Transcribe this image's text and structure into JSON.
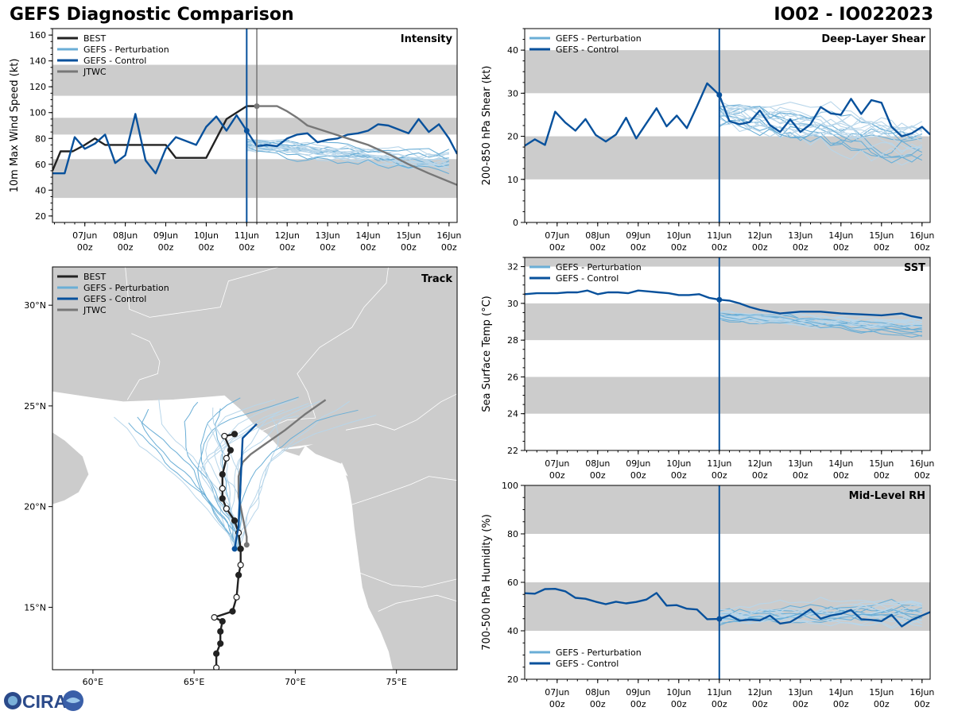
{
  "header": {
    "title": "GEFS Diagnostic Comparison",
    "storm_id": "IO02 - IO022023"
  },
  "logo_text": "CIRA",
  "colors": {
    "best": "#222222",
    "perturbation": "#6aaed6",
    "perturbation_light": "#b8d6ea",
    "control": "#08519c",
    "jtwc": "#777777",
    "band": "#cccccc",
    "land": "#cccccc",
    "border": "#ffffff"
  },
  "time_axis": {
    "tick_labels": [
      [
        "07Jun",
        "00z"
      ],
      [
        "08Jun",
        "00z"
      ],
      [
        "09Jun",
        "00z"
      ],
      [
        "10Jun",
        "00z"
      ],
      [
        "11Jun",
        "00z"
      ],
      [
        "12Jun",
        "00z"
      ],
      [
        "13Jun",
        "00z"
      ],
      [
        "14Jun",
        "00z"
      ],
      [
        "15Jun",
        "00z"
      ],
      [
        "16Jun",
        "00z"
      ]
    ],
    "xlim_days": [
      -4.8,
      5.2
    ],
    "analysis_day": 0
  },
  "chart_data": [
    {
      "id": "intensity",
      "type": "line",
      "title": "Intensity",
      "ylabel": "10m Max Wind Speed (kt)",
      "ylim": [
        15,
        165
      ],
      "yticks": [
        20,
        40,
        60,
        80,
        100,
        120,
        140,
        160
      ],
      "bands": [
        [
          34,
          64
        ],
        [
          83,
          96
        ],
        [
          113,
          137
        ]
      ],
      "legend": [
        "BEST",
        "GEFS - Perturbation",
        "GEFS - Control",
        "JTWC"
      ],
      "jtwc_start_day": 0.25,
      "series": [
        {
          "name": "BEST",
          "x": [
            -4.8,
            -4.6,
            -4.3,
            -4.0,
            -3.75,
            -3.5,
            -3.0,
            -2.5,
            -2.0,
            -1.75,
            -1.25,
            -1.0,
            -0.5,
            0,
            0.25
          ],
          "y": [
            55,
            70,
            70,
            75,
            80,
            75,
            75,
            75,
            75,
            65,
            65,
            65,
            95,
            105,
            105
          ]
        },
        {
          "name": "GEFS - Control",
          "x": [
            -4.8,
            -4.5,
            -4.25,
            -4.0,
            -3.75,
            -3.5,
            -3.25,
            -3.0,
            -2.75,
            -2.5,
            -2.25,
            -2.0,
            -1.75,
            -1.5,
            -1.25,
            -1.0,
            -0.75,
            -0.5,
            -0.25,
            0,
            0.25,
            0.5,
            0.75,
            1.0,
            1.25,
            1.5,
            1.75,
            2.0,
            2.25,
            2.5,
            2.75,
            3.0,
            3.25,
            3.5,
            3.75,
            4.0,
            4.25,
            4.5,
            4.75,
            5.0,
            5.2
          ],
          "y": [
            53,
            53,
            81,
            72,
            76,
            83,
            61,
            67,
            99,
            63,
            53,
            72,
            81,
            78,
            75,
            89,
            97,
            86,
            98,
            86,
            74,
            75,
            74,
            80,
            83,
            84,
            77,
            79,
            80,
            83,
            84,
            86,
            91,
            90,
            87,
            84,
            95,
            85,
            91,
            80,
            68
          ]
        },
        {
          "name": "JTWC",
          "x": [
            0.25,
            0.5,
            0.75,
            1.0,
            1.25,
            1.5,
            2.0,
            2.5,
            3.0,
            3.5,
            4.0,
            4.5,
            5.2
          ],
          "y": [
            105,
            105,
            105,
            101,
            96,
            90,
            85,
            80,
            75,
            68,
            60,
            53,
            44
          ]
        }
      ],
      "perturbation_spread": {
        "start_day": 0,
        "mean": 75,
        "spread": 10,
        "end_mean": 60,
        "members": 20
      }
    },
    {
      "id": "shear",
      "type": "line",
      "title": "Deep-Layer Shear",
      "ylabel": "200-850 hPa Shear (kt)",
      "ylim": [
        0,
        45
      ],
      "yticks": [
        0,
        10,
        20,
        30,
        40
      ],
      "bands": [
        [
          10,
          20
        ],
        [
          30,
          40
        ]
      ],
      "legend": [
        "GEFS - Perturbation",
        "GEFS - Control"
      ],
      "series": [
        {
          "name": "GEFS - Control",
          "x": [
            -4.8,
            -4.55,
            -4.3,
            -4.05,
            -3.8,
            -3.55,
            -3.3,
            -3.05,
            -2.8,
            -2.55,
            -2.3,
            -2.05,
            -1.8,
            -1.55,
            -1.3,
            -1.05,
            -0.8,
            -0.55,
            -0.3,
            0,
            0.25,
            0.5,
            0.75,
            1.0,
            1.25,
            1.5,
            1.75,
            2.0,
            2.25,
            2.5,
            2.75,
            3.0,
            3.25,
            3.5,
            3.75,
            4.0,
            4.25,
            4.5,
            4.75,
            5.0,
            5.2
          ],
          "y": [
            17.8,
            19.3,
            18.0,
            25.7,
            23.2,
            21.3,
            24.0,
            20.3,
            18.8,
            20.4,
            24.3,
            19.5,
            23.0,
            26.5,
            22.3,
            24.8,
            21.9,
            27.0,
            32.3,
            29.6,
            23.5,
            22.8,
            23.3,
            26.0,
            22.6,
            21.0,
            23.9,
            21.0,
            22.8,
            26.8,
            25.3,
            25.0,
            28.7,
            25.2,
            28.4,
            27.8,
            22.2,
            20.0,
            20.7,
            22.2,
            20.4
          ]
        }
      ],
      "perturbation_spread": {
        "start_day": 0,
        "mean": 25,
        "spread": 6,
        "end_mean": 18,
        "members": 20
      }
    },
    {
      "id": "sst",
      "type": "line",
      "title": "SST",
      "ylabel": "Sea Surface Temp (°C)",
      "ylim": [
        22,
        32.5
      ],
      "yticks": [
        22,
        24,
        26,
        28,
        30,
        32
      ],
      "bands": [
        [
          24,
          26
        ],
        [
          28,
          30
        ],
        [
          32,
          34
        ]
      ],
      "legend": [
        "GEFS - Perturbation",
        "GEFS - Control"
      ],
      "series": [
        {
          "name": "GEFS - Control",
          "x": [
            -4.8,
            -4.5,
            -4.0,
            -3.75,
            -3.5,
            -3.25,
            -3.0,
            -2.75,
            -2.5,
            -2.25,
            -2.0,
            -1.75,
            -1.5,
            -1.25,
            -1.0,
            -0.75,
            -0.5,
            -0.25,
            0,
            0.25,
            0.5,
            0.75,
            1.0,
            1.5,
            2.0,
            2.5,
            3.0,
            3.5,
            4.0,
            4.5,
            4.75,
            5.0
          ],
          "y": [
            30.5,
            30.55,
            30.55,
            30.6,
            30.6,
            30.7,
            30.5,
            30.6,
            30.6,
            30.55,
            30.7,
            30.65,
            30.6,
            30.55,
            30.45,
            30.45,
            30.5,
            30.3,
            30.2,
            30.15,
            30.0,
            29.8,
            29.65,
            29.45,
            29.55,
            29.55,
            29.45,
            29.4,
            29.35,
            29.45,
            29.3,
            29.2
          ]
        }
      ],
      "perturbation_spread": {
        "start_day": 0,
        "mean": 29.3,
        "spread": 0.5,
        "end_mean": 28.7,
        "members": 20
      }
    },
    {
      "id": "rh",
      "type": "line",
      "title": "Mid-Level RH",
      "ylabel": "700-500 hPa Humidity (%)",
      "ylim": [
        20,
        100
      ],
      "yticks": [
        20,
        40,
        60,
        80,
        100
      ],
      "bands": [
        [
          40,
          60
        ],
        [
          80,
          100
        ]
      ],
      "legend": [
        "GEFS - Perturbation",
        "GEFS - Control"
      ],
      "series": [
        {
          "name": "GEFS - Control",
          "x": [
            -4.8,
            -4.55,
            -4.3,
            -4.05,
            -3.8,
            -3.55,
            -3.3,
            -3.05,
            -2.8,
            -2.55,
            -2.3,
            -2.05,
            -1.8,
            -1.55,
            -1.3,
            -1.05,
            -0.8,
            -0.55,
            -0.3,
            0,
            0.25,
            0.5,
            0.75,
            1.0,
            1.25,
            1.5,
            1.75,
            2.0,
            2.25,
            2.5,
            2.75,
            3.0,
            3.25,
            3.5,
            3.75,
            4.0,
            4.25,
            4.5,
            4.75,
            5.0,
            5.2
          ],
          "y": [
            55.5,
            55.3,
            57.2,
            57.3,
            56.3,
            53.6,
            53.2,
            52.0,
            51.0,
            52.0,
            51.3,
            51.9,
            52.9,
            55.6,
            50.4,
            50.6,
            49.1,
            48.8,
            44.8,
            44.9,
            46.4,
            44.2,
            44.6,
            44.3,
            46.3,
            43.0,
            43.6,
            46.1,
            48.9,
            45.0,
            46.3,
            47.0,
            48.6,
            44.8,
            44.5,
            44.0,
            46.6,
            41.8,
            44.5,
            46.3,
            47.7
          ]
        }
      ],
      "perturbation_spread": {
        "start_day": 0,
        "mean": 46,
        "spread": 6,
        "end_mean": 47,
        "members": 20
      }
    },
    {
      "id": "track",
      "type": "scatter",
      "title": "Track",
      "xlim_lon": [
        58,
        78
      ],
      "ylim_lat": [
        11.9,
        31.9
      ],
      "xticks": [
        60,
        65,
        70,
        75
      ],
      "xtick_labels": [
        "60°E",
        "65°E",
        "70°E",
        "75°E"
      ],
      "yticks": [
        15,
        20,
        25,
        30
      ],
      "ytick_labels": [
        "15°N",
        "20°N",
        "25°N",
        "30°N"
      ],
      "legend": [
        "BEST",
        "GEFS - Perturbation",
        "GEFS - Control",
        "JTWC"
      ],
      "best_track": {
        "lon": [
          66.1,
          66.1,
          66.3,
          66.3,
          66.4,
          66.0,
          66.9,
          67.1,
          67.2,
          67.3,
          67.3,
          67.2,
          67.0,
          66.6,
          66.4,
          66.4,
          66.4,
          66.6,
          66.8,
          66.5,
          67.0
        ],
        "lat": [
          12.0,
          12.7,
          13.2,
          13.8,
          14.3,
          14.5,
          14.8,
          15.5,
          16.6,
          17.1,
          17.9,
          18.7,
          19.3,
          19.9,
          20.4,
          20.9,
          21.6,
          22.4,
          22.8,
          23.5,
          23.6
        ],
        "filled": [
          false,
          true,
          true,
          true,
          true,
          false,
          true,
          false,
          true,
          false,
          true,
          false,
          true,
          false,
          true,
          false,
          true,
          false,
          true,
          false,
          true
        ]
      },
      "control_track": {
        "lon": [
          67.0,
          67.1,
          67.2,
          67.4,
          67.8,
          68.1
        ],
        "lat": [
          17.9,
          18.5,
          19.0,
          23.4,
          23.8,
          24.1
        ]
      },
      "jtwc_track": {
        "lon": [
          67.6,
          67.6,
          67.4,
          67.2,
          67.2,
          67.4,
          67.8,
          68.5,
          69.5,
          70.5,
          71.5
        ],
        "lat": [
          18.1,
          18.5,
          19.5,
          20.5,
          21.5,
          22.2,
          22.6,
          23.1,
          23.8,
          24.6,
          25.3
        ]
      }
    }
  ]
}
